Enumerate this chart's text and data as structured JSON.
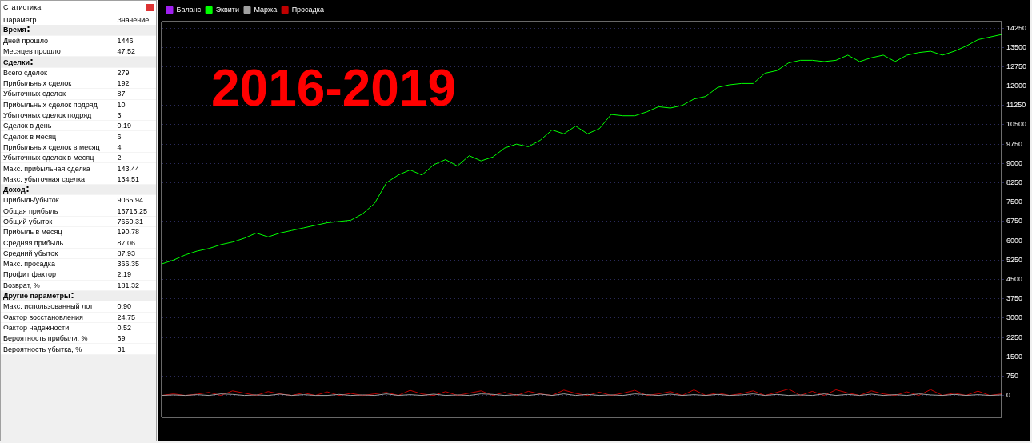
{
  "chart_data": [
    {
      "type": "other",
      "title": "Статистика",
      "xlabel": "Параметр",
      "ylabel": "Значение",
      "categories": [
        "Время",
        "Дней прошло",
        "Месяцев прошло",
        "Сделки",
        "Всего сделок",
        "Прибыльных сделок",
        "Убыточных сделок",
        "Прибыльных сделок подряд",
        "Убыточных сделок подряд",
        "Сделок в день",
        "Сделок в месяц",
        "Прибыльных сделок в месяц",
        "Убыточных сделок в месяц",
        "Макс. прибыльная сделка",
        "Макс. убыточная сделка",
        "Доход",
        "Прибыль/убыток",
        "Общая прибыль",
        "Общий убыток",
        "Прибыль в месяц",
        "Средняя прибыль",
        "Средний убыток",
        "Макс. просадка",
        "Профит фактор",
        "Возврат, %",
        "Другие параметры",
        "Макс. использованный лот",
        "Фактор восстановления",
        "Фактор надежности",
        "Вероятность прибыли, %",
        "Вероятность убытка, %"
      ],
      "value_labels": [
        null,
        "1446",
        "47.52",
        null,
        "279",
        "192",
        "87",
        "10",
        "3",
        "0.19",
        "6",
        "4",
        "2",
        "143.44",
        "134.51",
        null,
        "9065.94",
        "16716.25",
        "7650.31",
        "190.78",
        "87.06",
        "87.93",
        "366.35",
        "2.19",
        "181.32",
        null,
        "0.90",
        "24.75",
        "0.52",
        "69",
        "31"
      ]
    },
    {
      "type": "line",
      "annotations": [
        "2016-2019"
      ],
      "categories": [
        null,
        null,
        null,
        null,
        null,
        null,
        null,
        null,
        null,
        null,
        null,
        null,
        null,
        null,
        null,
        null,
        null,
        null,
        null,
        null,
        null,
        null,
        null,
        null,
        null,
        null,
        null,
        null,
        null,
        null,
        null,
        null,
        null,
        null,
        null,
        null,
        null,
        null,
        null,
        null,
        null,
        null,
        null,
        null,
        null,
        null,
        null,
        null,
        null,
        null,
        null,
        null,
        null,
        null,
        null,
        null,
        null,
        null,
        null,
        null,
        null,
        null,
        null,
        null,
        null,
        null,
        null,
        null,
        null,
        null,
        null,
        null
      ],
      "series": [
        {
          "name": "Баланс",
          "color": "#a020f0",
          "values": [
            null,
            null,
            null,
            null,
            null,
            null,
            null,
            null,
            null,
            null,
            null,
            null,
            null,
            null,
            null,
            null,
            null,
            null,
            null,
            null,
            null,
            null,
            null,
            null,
            null,
            null,
            null,
            null,
            null,
            null,
            null,
            null,
            null,
            null,
            null,
            null,
            null,
            null,
            null,
            null,
            null,
            null,
            null,
            null,
            null,
            null,
            null,
            null,
            null,
            null,
            null,
            null,
            null,
            null,
            null,
            null,
            null,
            null,
            null,
            null,
            null,
            null,
            null,
            null,
            null,
            null,
            null,
            null,
            null,
            null,
            null,
            null
          ]
        },
        {
          "name": "Эквити",
          "color": "#00ff00",
          "values": [
            5100,
            5250,
            5450,
            5600,
            5700,
            5850,
            5950,
            6100,
            6300,
            6150,
            6300,
            6400,
            6500,
            6600,
            6700,
            6750,
            6800,
            7050,
            7450,
            8250,
            8550,
            8750,
            8550,
            8950,
            9150,
            8900,
            9300,
            9100,
            9250,
            9600,
            9750,
            9650,
            9900,
            10300,
            10150,
            10450,
            10150,
            10350,
            10900,
            10850,
            10850,
            11000,
            11200,
            11150,
            11250,
            11500,
            11600,
            11950,
            12050,
            12100,
            12100,
            12500,
            12600,
            12900,
            13000,
            13000,
            12950,
            13000,
            13200,
            12950,
            13100,
            13200,
            12950,
            13200,
            13300,
            13350,
            13200,
            13350,
            13550,
            13800,
            13900,
            14000
          ]
        },
        {
          "name": "Маржа",
          "color": "#a0a0a0",
          "values": [
            0,
            20,
            0,
            30,
            0,
            60,
            40,
            0,
            20,
            0,
            50,
            0,
            30,
            0,
            0,
            40,
            0,
            20,
            0,
            60,
            0,
            30,
            0,
            50,
            0,
            20,
            0,
            60,
            40,
            0,
            30,
            0,
            50,
            0,
            60,
            0,
            40,
            0,
            20,
            0,
            60,
            30,
            0,
            50,
            0,
            30,
            0,
            40,
            0,
            20,
            60,
            0,
            40,
            0,
            20,
            0,
            60,
            0,
            40,
            0,
            50,
            0,
            30,
            0,
            60,
            20,
            0,
            40,
            0,
            30,
            0,
            20
          ]
        },
        {
          "name": "Просадка",
          "color": "#c00000",
          "values": [
            0,
            60,
            0,
            50,
            120,
            0,
            180,
            90,
            0,
            150,
            60,
            0,
            100,
            0,
            140,
            0,
            80,
            0,
            60,
            120,
            0,
            200,
            60,
            0,
            150,
            0,
            90,
            180,
            0,
            120,
            0,
            160,
            60,
            0,
            210,
            80,
            0,
            130,
            0,
            90,
            200,
            0,
            60,
            150,
            0,
            220,
            0,
            100,
            0,
            70,
            180,
            0,
            120,
            250,
            0,
            160,
            0,
            220,
            100,
            0,
            180,
            60,
            0,
            140,
            0,
            230,
            0,
            90,
            0,
            170,
            0,
            60
          ]
        }
      ],
      "ylim": [
        -850,
        14500
      ],
      "yticks": [
        0,
        750,
        1500,
        2250,
        3000,
        3750,
        4500,
        5250,
        6000,
        6750,
        7500,
        8250,
        9000,
        9750,
        10500,
        11250,
        12000,
        12750,
        13500,
        14250
      ],
      "grid": "y",
      "legend": "top left",
      "tick_labels": "y",
      "marker": "none",
      "line_style": "solid"
    }
  ]
}
